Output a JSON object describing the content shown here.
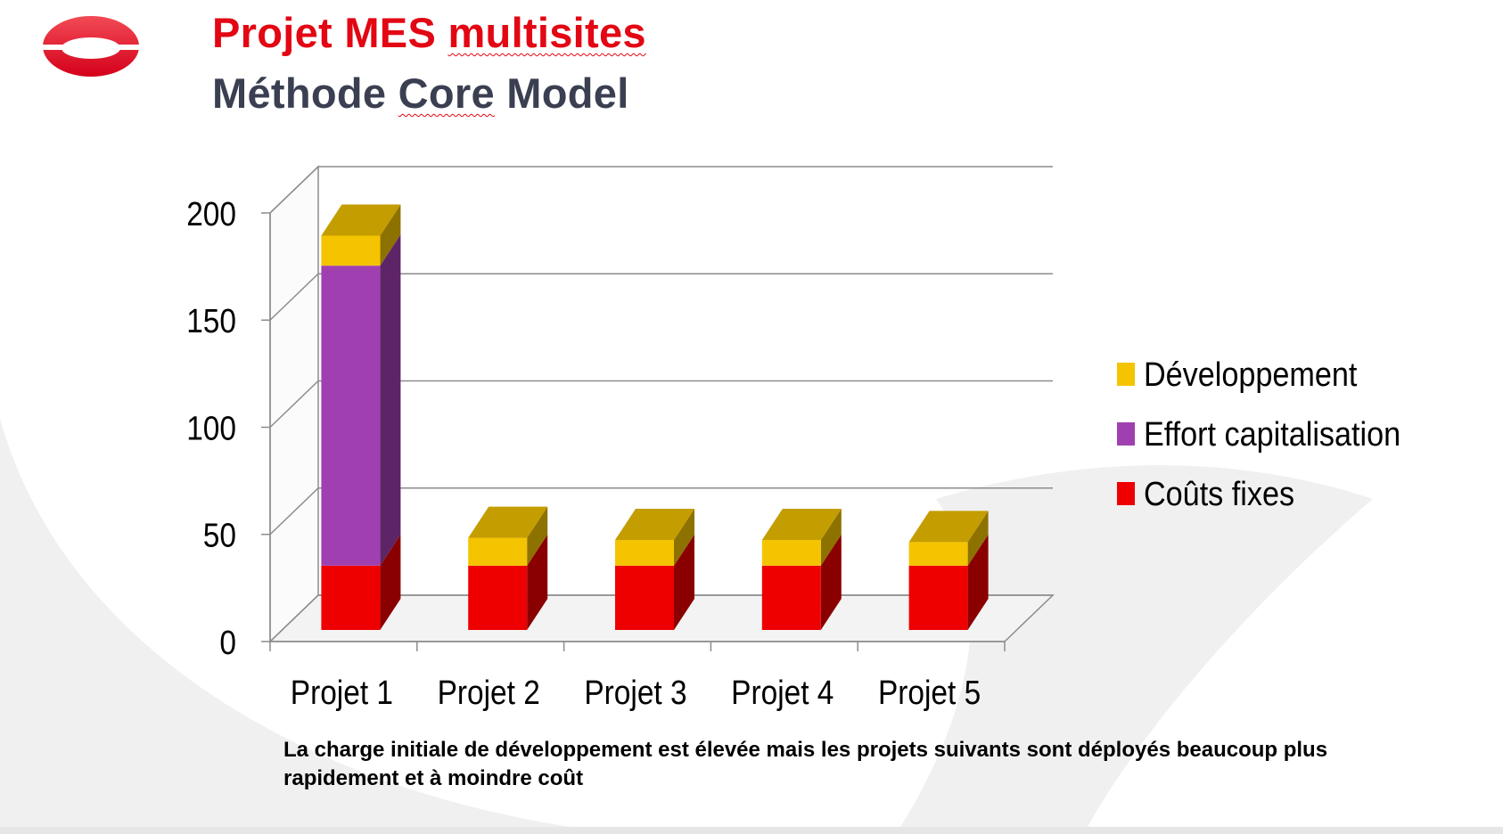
{
  "slide": {
    "title_part1": "Projet MES ",
    "title_part2": "multisites",
    "subtitle_part1": "Méthode ",
    "subtitle_part2": "Core",
    "subtitle_part3": " Model",
    "caption": "La charge initiale de développement est élevée mais les projets suivants sont déployés beaucoup plus rapidement et à moindre coût",
    "logo_icon": "red-ring-logo-icon"
  },
  "colors": {
    "title_red": "#e30613",
    "subtitle_gray": "#3a3f51",
    "couts_fixes": "#ee0000",
    "effort_capitalisation": "#a040b0",
    "developpement": "#f5c400"
  },
  "chart_data": {
    "type": "bar",
    "stacked": true,
    "three_d": true,
    "categories": [
      "Projet 1",
      "Projet 2",
      "Projet 3",
      "Projet 4",
      "Projet 5"
    ],
    "series": [
      {
        "name": "Coûts fixes",
        "values": [
          30,
          30,
          30,
          30,
          30
        ],
        "color": "#ee0000"
      },
      {
        "name": "Effort capitalisation",
        "values": [
          140,
          0,
          0,
          0,
          0
        ],
        "color": "#a040b0"
      },
      {
        "name": "Développement",
        "values": [
          14,
          13,
          12,
          12,
          11
        ],
        "color": "#f5c400"
      }
    ],
    "legend_order": [
      "Développement",
      "Effort capitalisation",
      "Coûts fixes"
    ],
    "y_ticks": [
      0,
      50,
      100,
      150,
      200
    ],
    "ylim": [
      0,
      200
    ],
    "grid": true,
    "legend_position": "right"
  }
}
